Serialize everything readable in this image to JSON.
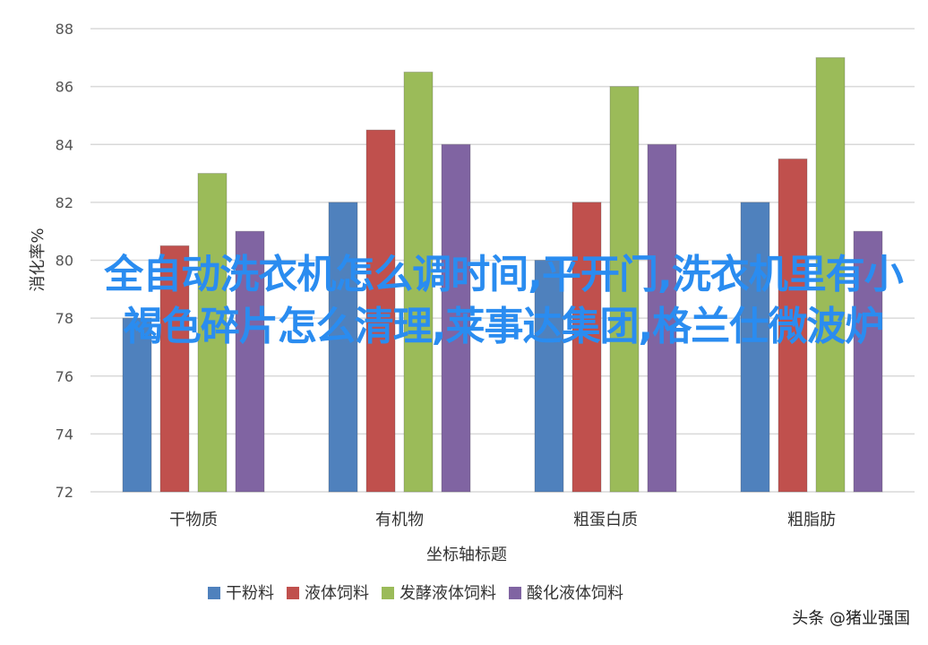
{
  "chart_data": {
    "type": "bar",
    "title": "",
    "xlabel": "坐标轴标题",
    "ylabel": "消化率%",
    "ylim": [
      72,
      88
    ],
    "yticks": [
      72,
      74,
      76,
      78,
      80,
      82,
      84,
      86,
      88
    ],
    "grid": true,
    "legend_position": "bottom",
    "categories": [
      "干物质",
      "有机物",
      "粗蛋白质",
      "粗脂肪"
    ],
    "series": [
      {
        "name": "干粉料",
        "color": "#4f81bd",
        "values": [
          78,
          82,
          80,
          82
        ]
      },
      {
        "name": "液体饲料",
        "color": "#c0504d",
        "values": [
          80.5,
          84.5,
          82,
          83.5
        ]
      },
      {
        "name": "发酵液体饲料",
        "color": "#9bbb59",
        "values": [
          83,
          86.5,
          86,
          87
        ]
      },
      {
        "name": "酸化液体饲料",
        "color": "#8064a2",
        "values": [
          81,
          84,
          84,
          81
        ]
      }
    ]
  },
  "overlay_text": "全自动洗衣机怎么调时间,平开门,洗衣机里有小褐色碎片怎么清理,莱事达集团,格兰仕微波炉",
  "watermark": "头条 @猪业强国"
}
